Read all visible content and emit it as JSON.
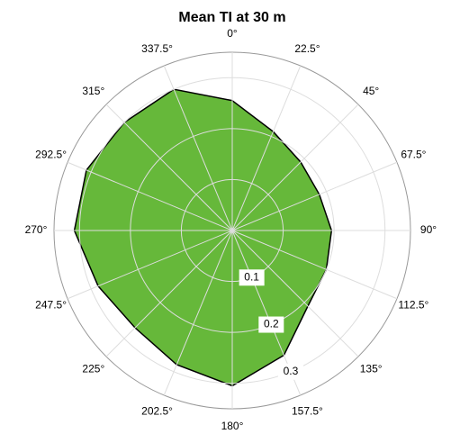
{
  "chart_data": {
    "type": "radar",
    "title": "Mean TI at 30 m",
    "categories": [
      "0°",
      "22.5°",
      "45°",
      "67.5°",
      "90°",
      "112.5°",
      "135°",
      "157.5°",
      "180°",
      "202.5°",
      "225°",
      "247.5°",
      "270°",
      "292.5°",
      "315°",
      "337.5°"
    ],
    "values": [
      0.255,
      0.21,
      0.19,
      0.185,
      0.195,
      0.2,
      0.21,
      0.265,
      0.305,
      0.285,
      0.27,
      0.285,
      0.31,
      0.31,
      0.3,
      0.3
    ],
    "color": "#66b83a",
    "rlim": [
      0,
      0.35
    ],
    "rticks": [
      0.1,
      0.2,
      0.3
    ],
    "grid": true
  }
}
